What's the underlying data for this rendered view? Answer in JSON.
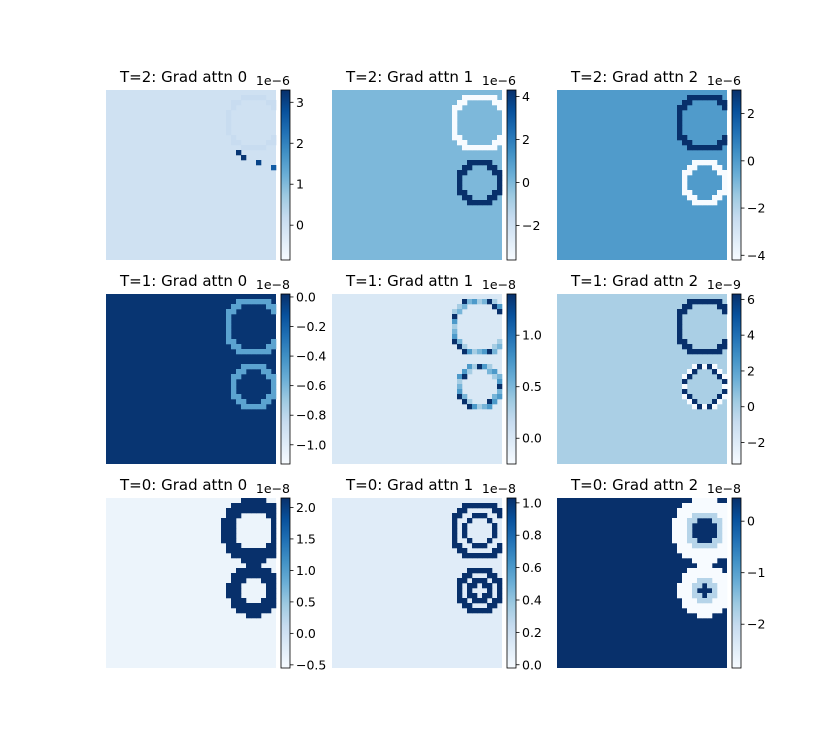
{
  "chart_data": [
    {
      "type": "heatmap",
      "title": "T=2: Grad attn 0",
      "colormap": "Blues",
      "colorbar": {
        "ticks": [
          "0",
          "1",
          "2",
          "3"
        ],
        "offset": "1e−6",
        "range": [
          -0.85,
          3.3
        ]
      },
      "background_value": 0.0,
      "features": [
        {
          "kind": "cluster",
          "region": "upper-arc",
          "level": "light"
        },
        {
          "kind": "dots",
          "values": [
            3.2,
            3.2,
            3.0,
            2.6
          ]
        }
      ]
    },
    {
      "type": "heatmap",
      "title": "T=2: Grad attn 1",
      "colormap": "Blues",
      "colorbar": {
        "ticks": [
          "−2",
          "0",
          "2",
          "4"
        ],
        "offset": "1e−6",
        "range": [
          -3.6,
          4.3
        ]
      },
      "background_value": 0.0,
      "features": [
        {
          "kind": "ring",
          "region": "upper",
          "level": "white"
        },
        {
          "kind": "ring",
          "region": "lower",
          "level": "dark"
        }
      ]
    },
    {
      "type": "heatmap",
      "title": "T=2: Grad attn 2",
      "colormap": "Blues",
      "colorbar": {
        "ticks": [
          "−4",
          "−2",
          "0",
          "2"
        ],
        "offset": "1e−6",
        "range": [
          -4.2,
          3.0
        ]
      },
      "background_value": 0.0,
      "features": [
        {
          "kind": "ring",
          "region": "upper",
          "level": "dark"
        },
        {
          "kind": "ring",
          "region": "lower",
          "level": "white"
        }
      ]
    },
    {
      "type": "heatmap",
      "title": "T=1: Grad attn 0",
      "colormap": "Blues",
      "colorbar": {
        "ticks": [
          "−1.0",
          "−0.8",
          "−0.6",
          "−0.4",
          "−0.2",
          "0.0"
        ],
        "offset": "1e−8",
        "range": [
          -1.13,
          0.02
        ]
      },
      "background_value": 0.0,
      "features": [
        {
          "kind": "ring",
          "region": "upper",
          "level": "light"
        },
        {
          "kind": "ring",
          "region": "lower",
          "level": "light"
        }
      ]
    },
    {
      "type": "heatmap",
      "title": "T=1: Grad attn 1",
      "colormap": "Blues",
      "colorbar": {
        "ticks": [
          "0.0",
          "0.5",
          "1.0"
        ],
        "offset": "1e−8",
        "range": [
          -0.25,
          1.4
        ]
      },
      "background_value": 0.0,
      "features": [
        {
          "kind": "ring",
          "region": "upper",
          "level": "speckled"
        },
        {
          "kind": "ring",
          "region": "lower",
          "level": "speckled"
        }
      ]
    },
    {
      "type": "heatmap",
      "title": "T=1: Grad attn 2",
      "colormap": "Blues",
      "colorbar": {
        "ticks": [
          "−2",
          "0",
          "2",
          "4",
          "6"
        ],
        "offset": "1e−9",
        "range": [
          -3.2,
          6.3
        ]
      },
      "background_value": 0.0,
      "features": [
        {
          "kind": "ring",
          "region": "upper",
          "level": "dark"
        },
        {
          "kind": "ring",
          "region": "lower",
          "level": "dark-white"
        }
      ]
    },
    {
      "type": "heatmap",
      "title": "T=0: Grad attn 0",
      "colormap": "Blues",
      "colorbar": {
        "ticks": [
          "−0.5",
          "0.0",
          "0.5",
          "1.0",
          "1.5",
          "2.0"
        ],
        "offset": "1e−8",
        "range": [
          -0.55,
          2.15
        ]
      },
      "background_value": -0.4,
      "features": [
        {
          "kind": "ring",
          "region": "upper",
          "level": "dark-thick"
        },
        {
          "kind": "ring",
          "region": "lower",
          "level": "dark-thick"
        }
      ]
    },
    {
      "type": "heatmap",
      "title": "T=0: Grad attn 1",
      "colormap": "Blues",
      "colorbar": {
        "ticks": [
          "0.0",
          "0.2",
          "0.4",
          "0.6",
          "0.8",
          "1.0"
        ],
        "offset": "1e−8",
        "range": [
          -0.02,
          1.03
        ]
      },
      "background_value": 0.1,
      "features": [
        {
          "kind": "ring",
          "region": "upper",
          "level": "double-dark"
        },
        {
          "kind": "ring",
          "region": "lower",
          "level": "double-dark"
        }
      ]
    },
    {
      "type": "heatmap",
      "title": "T=0: Grad attn 2",
      "colormap": "Blues",
      "colorbar": {
        "ticks": [
          "−2",
          "−1",
          "0"
        ],
        "offset": "1e−8",
        "range": [
          -2.85,
          0.45
        ]
      },
      "background_value": 0.45,
      "features": [
        {
          "kind": "ring",
          "region": "upper",
          "level": "white-thick"
        },
        {
          "kind": "ring",
          "region": "lower",
          "level": "white-thick"
        }
      ]
    }
  ]
}
